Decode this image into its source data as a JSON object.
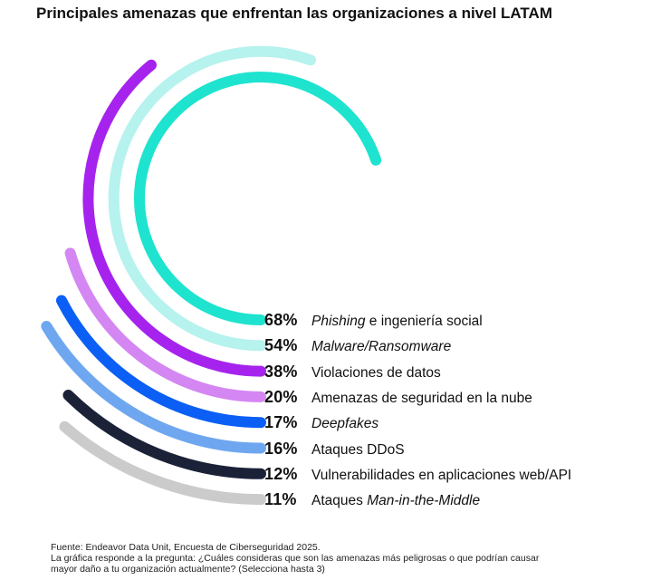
{
  "chart_data": {
    "type": "radial-bar",
    "title": "Principales amenazas que enfrentan las organizaciones a nivel LATAM",
    "unit": "%",
    "series": [
      {
        "value": 68,
        "pct_label": "68%",
        "label_parts": [
          {
            "text": "Phishing",
            "italic": true
          },
          {
            "text": " e ingeniería social",
            "italic": false
          }
        ],
        "color": "#1ee3cf"
      },
      {
        "value": 54,
        "pct_label": "54%",
        "label_parts": [
          {
            "text": "Malware/Ransomware",
            "italic": true
          }
        ],
        "color": "#b6f2ee"
      },
      {
        "value": 38,
        "pct_label": "38%",
        "label_parts": [
          {
            "text": "Violaciones de datos",
            "italic": false
          }
        ],
        "color": "#a623ee"
      },
      {
        "value": 20,
        "pct_label": "20%",
        "label_parts": [
          {
            "text": "Amenazas de seguridad en la nube",
            "italic": false
          }
        ],
        "color": "#d487f2"
      },
      {
        "value": 17,
        "pct_label": "17%",
        "label_parts": [
          {
            "text": "Deepfakes",
            "italic": true
          }
        ],
        "color": "#0b5ff5"
      },
      {
        "value": 16,
        "pct_label": "16%",
        "label_parts": [
          {
            "text": "Ataques DDoS",
            "italic": false
          }
        ],
        "color": "#6ea7f0"
      },
      {
        "value": 12,
        "pct_label": "12%",
        "label_parts": [
          {
            "text": "Vulnerabilidades en aplicaciones web/API",
            "italic": false
          }
        ],
        "color": "#1b2238"
      },
      {
        "value": 11,
        "pct_label": "11%",
        "label_parts": [
          {
            "text": "Ataques ",
            "italic": false
          },
          {
            "text": "Man-in-the-Middle",
            "italic": true
          }
        ],
        "color": "#cbcbcb"
      }
    ]
  },
  "footnotes": {
    "source": "Fuente: Endeavor Data Unit, Encuesta de Ciberseguridad 2025.",
    "question_line1": "La gráfica responde a la pregunta:  ¿Cuáles consideras que son las amenazas más peligrosas o que podrían causar",
    "question_line2": "mayor daño a tu organización actualmente? (Selecciona hasta 3)"
  }
}
